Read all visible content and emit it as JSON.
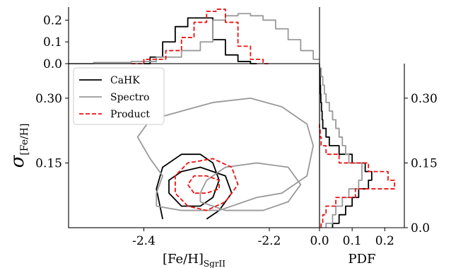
{
  "chart_data": [
    {
      "panel": "top_histogram",
      "type": "line",
      "xlim": [
        -2.52,
        -2.12
      ],
      "ylim": [
        0.0,
        0.26
      ],
      "yticks": [
        0.0,
        0.1,
        0.2
      ],
      "ytick_labels": [
        "0.0",
        "0.1",
        "0.2"
      ],
      "series": [
        {
          "name": "CaHK",
          "color": "#000000",
          "style": "solid",
          "x": [
            -2.4,
            -2.38,
            -2.36,
            -2.34,
            -2.32,
            -2.3,
            -2.28,
            -2.26,
            -2.24,
            -2.22
          ],
          "y": [
            0.0,
            0.03,
            0.1,
            0.17,
            0.21,
            0.21,
            0.11,
            0.04,
            0.01,
            0.0
          ]
        },
        {
          "name": "Spectro",
          "color": "#999999",
          "style": "solid",
          "x": [
            -2.52,
            -2.44,
            -2.4,
            -2.36,
            -2.32,
            -2.3,
            -2.28,
            -2.26,
            -2.24,
            -2.22,
            -2.2,
            -2.18,
            -2.16,
            -2.14,
            -2.12
          ],
          "y": [
            0.0,
            0.005,
            0.01,
            0.03,
            0.06,
            0.1,
            0.2,
            0.22,
            0.23,
            0.22,
            0.2,
            0.16,
            0.11,
            0.06,
            0.02
          ]
        },
        {
          "name": "Product",
          "color": "#ee1111",
          "style": "dashed",
          "x": [
            -2.42,
            -2.38,
            -2.35,
            -2.33,
            -2.31,
            -2.29,
            -2.28,
            -2.26,
            -2.24,
            -2.22,
            -2.2
          ],
          "y": [
            0.0,
            0.02,
            0.06,
            0.12,
            0.19,
            0.24,
            0.25,
            0.19,
            0.08,
            0.02,
            0.0
          ]
        }
      ]
    },
    {
      "panel": "main_contours",
      "type": "line",
      "xlim": [
        -2.52,
        -2.12
      ],
      "ylim": [
        0.0,
        0.38
      ],
      "xticks": [
        -2.4,
        -2.2
      ],
      "xtick_labels": [
        "-2.4",
        "-2.2"
      ],
      "yticks": [
        0.15,
        0.3
      ],
      "ytick_labels": [
        "0.15",
        "0.30"
      ],
      "xlabel": "[Fe/H]",
      "xlabel_sub": "SgrII",
      "ylabel": "σ",
      "ylabel_sub": "[Fe/H]",
      "legend": {
        "position": "upper-left",
        "entries": [
          "CaHK",
          "Spectro",
          "Product"
        ]
      },
      "contours": [
        {
          "series": "CaHK",
          "color": "#000000",
          "style": "solid",
          "points": [
            [
              -2.37,
              0.02
            ],
            [
              -2.38,
              0.09
            ],
            [
              -2.37,
              0.14
            ],
            [
              -2.34,
              0.17
            ],
            [
              -2.31,
              0.17
            ],
            [
              -2.29,
              0.15
            ],
            [
              -2.28,
              0.11
            ],
            [
              -2.29,
              0.07
            ],
            [
              -2.31,
              0.05
            ],
            [
              -2.34,
              0.05
            ],
            [
              -2.36,
              0.08
            ],
            [
              -2.36,
              0.11
            ],
            [
              -2.34,
              0.13
            ],
            [
              -2.31,
              0.14
            ],
            [
              -2.27,
              0.12
            ],
            [
              -2.26,
              0.08
            ],
            [
              -2.28,
              0.04
            ],
            [
              -2.3,
              0.02
            ]
          ]
        },
        {
          "series": "Spectro",
          "color": "#999999",
          "style": "solid",
          "points": [
            [
              -2.31,
              0.06
            ],
            [
              -2.27,
              0.04
            ],
            [
              -2.21,
              0.04
            ],
            [
              -2.17,
              0.06
            ],
            [
              -2.15,
              0.1
            ],
            [
              -2.17,
              0.14
            ],
            [
              -2.22,
              0.15
            ],
            [
              -2.27,
              0.14
            ],
            [
              -2.3,
              0.11
            ],
            [
              -2.31,
              0.08
            ],
            [
              -2.31,
              0.06
            ]
          ]
        },
        {
          "series": "Spectro",
          "color": "#999999",
          "style": "solid",
          "points": [
            [
              -2.38,
              0.05
            ],
            [
              -2.34,
              0.04
            ],
            [
              -2.28,
              0.04
            ],
            [
              -2.22,
              0.07
            ],
            [
              -2.18,
              0.08
            ],
            [
              -2.14,
              0.12
            ],
            [
              -2.13,
              0.19
            ],
            [
              -2.14,
              0.24
            ],
            [
              -2.18,
              0.28
            ],
            [
              -2.23,
              0.3
            ],
            [
              -2.29,
              0.29
            ],
            [
              -2.34,
              0.27
            ],
            [
              -2.39,
              0.25
            ],
            [
              -2.41,
              0.21
            ],
            [
              -2.39,
              0.16
            ],
            [
              -2.37,
              0.12
            ],
            [
              -2.38,
              0.08
            ],
            [
              -2.38,
              0.05
            ]
          ]
        },
        {
          "series": "Product",
          "color": "#ee1111",
          "style": "dashed",
          "points": [
            [
              -2.33,
              0.05
            ],
            [
              -2.35,
              0.08
            ],
            [
              -2.35,
              0.12
            ],
            [
              -2.33,
              0.15
            ],
            [
              -2.29,
              0.16
            ],
            [
              -2.26,
              0.14
            ],
            [
              -2.25,
              0.1
            ],
            [
              -2.27,
              0.06
            ],
            [
              -2.3,
              0.04
            ],
            [
              -2.33,
              0.05
            ]
          ]
        },
        {
          "series": "Product",
          "color": "#ee1111",
          "style": "dashed",
          "points": [
            [
              -2.32,
              0.08
            ],
            [
              -2.33,
              0.1
            ],
            [
              -2.32,
              0.12
            ],
            [
              -2.3,
              0.12
            ],
            [
              -2.28,
              0.11
            ],
            [
              -2.28,
              0.09
            ],
            [
              -2.3,
              0.08
            ],
            [
              -2.32,
              0.08
            ]
          ]
        }
      ]
    },
    {
      "panel": "right_histogram",
      "type": "line",
      "xlim": [
        0.0,
        0.26
      ],
      "ylim": [
        0.0,
        0.38
      ],
      "xticks": [
        0.0,
        0.1,
        0.2
      ],
      "xtick_labels": [
        "0.0",
        "0.1",
        "0.2"
      ],
      "yticks": [
        0.0,
        0.15,
        0.3
      ],
      "ytick_labels": [
        "0.0",
        "0.15",
        "0.30"
      ],
      "xlabel": "PDF",
      "series": [
        {
          "name": "CaHK",
          "color": "#000000",
          "style": "solid",
          "y": [
            0.0,
            0.02,
            0.04,
            0.06,
            0.08,
            0.1,
            0.12,
            0.14,
            0.16,
            0.18,
            0.2,
            0.22,
            0.24,
            0.26,
            0.28,
            0.3,
            0.32,
            0.34,
            0.36,
            0.38
          ],
          "x": [
            0.04,
            0.06,
            0.08,
            0.1,
            0.12,
            0.15,
            0.16,
            0.14,
            0.1,
            0.06,
            0.03,
            0.02,
            0.01,
            0.008,
            0.006,
            0.004,
            0.003,
            0.002,
            0.001,
            0.0
          ]
        },
        {
          "name": "Spectro",
          "color": "#999999",
          "style": "solid",
          "y": [
            0.0,
            0.02,
            0.04,
            0.06,
            0.08,
            0.1,
            0.12,
            0.14,
            0.16,
            0.18,
            0.2,
            0.22,
            0.24,
            0.26,
            0.28,
            0.3,
            0.32,
            0.34,
            0.36,
            0.38
          ],
          "x": [
            0.02,
            0.04,
            0.05,
            0.07,
            0.09,
            0.12,
            0.13,
            0.13,
            0.09,
            0.08,
            0.07,
            0.06,
            0.05,
            0.04,
            0.03,
            0.02,
            0.015,
            0.01,
            0.005,
            0.0
          ]
        },
        {
          "name": "Product",
          "color": "#ee1111",
          "style": "dashed",
          "y": [
            0.0,
            0.02,
            0.04,
            0.06,
            0.08,
            0.1,
            0.12,
            0.14,
            0.16,
            0.18,
            0.2,
            0.22,
            0.24
          ],
          "x": [
            0.005,
            0.01,
            0.02,
            0.05,
            0.11,
            0.23,
            0.21,
            0.15,
            0.06,
            0.02,
            0.005,
            0.002,
            0.0
          ]
        }
      ]
    }
  ]
}
